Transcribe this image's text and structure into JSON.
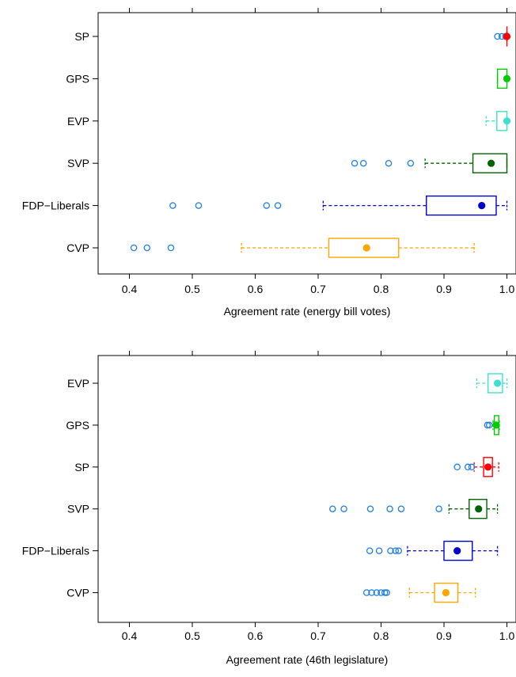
{
  "chart_data": [
    {
      "type": "boxplot",
      "xlabel": "Agreement rate (energy bill votes)",
      "xlim": [
        0.35,
        1.02
      ],
      "xticks": [
        "0.4",
        "0.5",
        "0.6",
        "0.7",
        "0.8",
        "0.9",
        "1.0"
      ],
      "grid": false,
      "groups": [
        {
          "label": "SP",
          "color": "#ff0000",
          "min": 1.0,
          "q1": 1.0,
          "median": 1.0,
          "q3": 1.0,
          "max": 1.0,
          "outliers": [
            0.985,
            0.992,
            0.998
          ]
        },
        {
          "label": "GPS",
          "color": "#00cc00",
          "min": 0.985,
          "q1": 0.985,
          "median": 1.0,
          "q3": 1.0,
          "max": 1.0,
          "outliers": []
        },
        {
          "label": "EVP",
          "color": "#40e0d0",
          "min": 0.967,
          "q1": 0.984,
          "median": 1.0,
          "q3": 1.0,
          "max": 1.0,
          "outliers": []
        },
        {
          "label": "SVP",
          "color": "#006400",
          "min": 0.87,
          "q1": 0.946,
          "median": 0.975,
          "q3": 1.0,
          "max": 1.0,
          "outliers": [
            0.758,
            0.772,
            0.812,
            0.847
          ]
        },
        {
          "label": "FDP−Liberals",
          "color": "#0000cd",
          "min": 0.708,
          "q1": 0.872,
          "median": 0.96,
          "q3": 0.983,
          "max": 1.0,
          "outliers": [
            0.469,
            0.51,
            0.618,
            0.636
          ]
        },
        {
          "label": "CVP",
          "color": "#ffa500",
          "min": 0.578,
          "q1": 0.717,
          "median": 0.777,
          "q3": 0.828,
          "max": 0.948,
          "outliers": [
            0.407,
            0.428,
            0.466
          ]
        }
      ]
    },
    {
      "type": "boxplot",
      "xlabel": "Agreement rate (46th legislature)",
      "xlim": [
        0.35,
        1.02
      ],
      "xticks": [
        "0.4",
        "0.5",
        "0.6",
        "0.7",
        "0.8",
        "0.9",
        "1.0"
      ],
      "grid": false,
      "groups": [
        {
          "label": "EVP",
          "color": "#40e0d0",
          "min": 0.952,
          "q1": 0.97,
          "median": 0.985,
          "q3": 0.993,
          "max": 1.0,
          "outliers": []
        },
        {
          "label": "GPS",
          "color": "#00cc00",
          "min": 0.978,
          "q1": 0.98,
          "median": 0.983,
          "q3": 0.987,
          "max": 0.988,
          "outliers": [
            0.969,
            0.972
          ]
        },
        {
          "label": "SP",
          "color": "#ff0000",
          "min": 0.948,
          "q1": 0.963,
          "median": 0.97,
          "q3": 0.977,
          "max": 0.987,
          "outliers": [
            0.921,
            0.938,
            0.944
          ]
        },
        {
          "label": "SVP",
          "color": "#006400",
          "min": 0.908,
          "q1": 0.94,
          "median": 0.955,
          "q3": 0.968,
          "max": 0.985,
          "outliers": [
            0.723,
            0.741,
            0.783,
            0.814,
            0.832,
            0.892
          ]
        },
        {
          "label": "FDP−Liberals",
          "color": "#0000cd",
          "min": 0.842,
          "q1": 0.9,
          "median": 0.921,
          "q3": 0.945,
          "max": 0.985,
          "outliers": [
            0.782,
            0.797,
            0.815,
            0.823,
            0.828
          ]
        },
        {
          "label": "CVP",
          "color": "#ffa500",
          "min": 0.845,
          "q1": 0.885,
          "median": 0.903,
          "q3": 0.922,
          "max": 0.95,
          "outliers": [
            0.777,
            0.785,
            0.793,
            0.8,
            0.806,
            0.809
          ]
        }
      ]
    }
  ]
}
